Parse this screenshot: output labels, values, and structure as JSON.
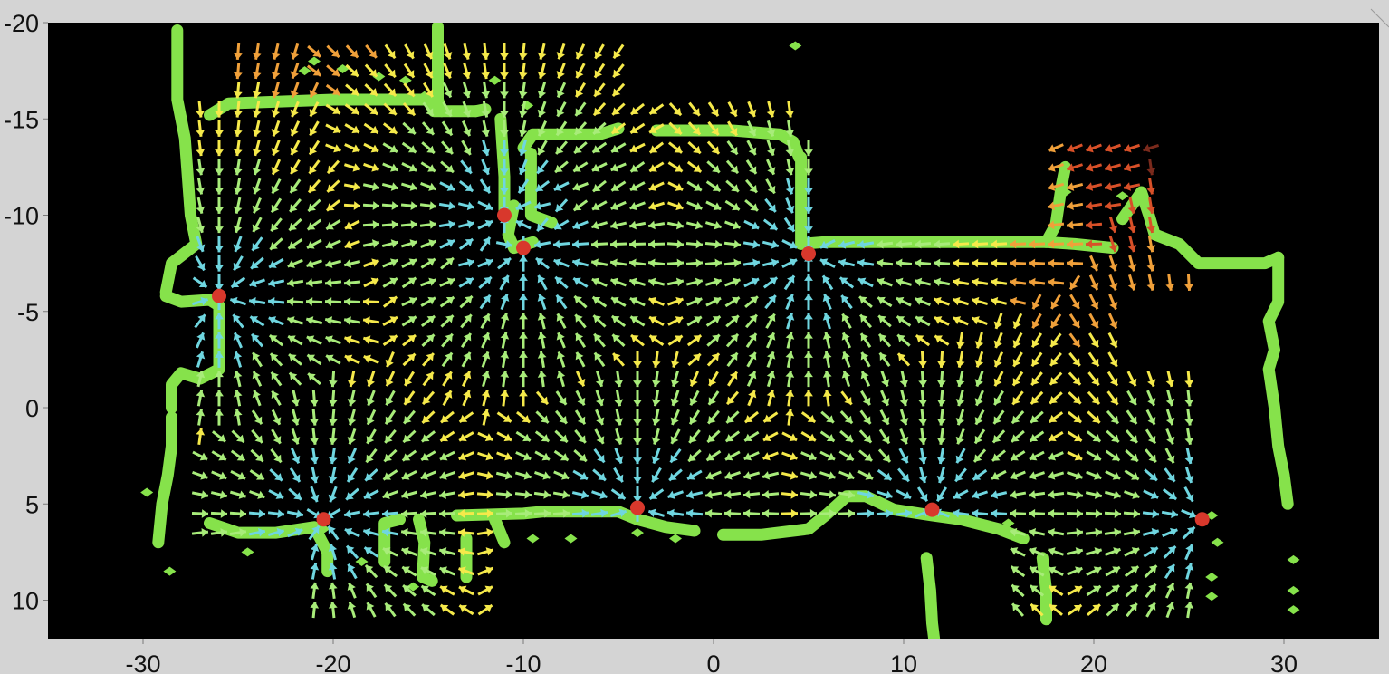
{
  "chart_data": {
    "type": "scatter",
    "subtype": "quiver-field-with-occupancy-map",
    "title": "",
    "xlabel": "",
    "ylabel": "",
    "xlim": [
      -35,
      35
    ],
    "ylim": [
      12,
      -20
    ],
    "y_axis_direction": "reversed (downward increasing)",
    "x_ticks": [
      -30,
      -20,
      -10,
      0,
      10,
      20,
      30
    ],
    "x_tick_labels": [
      "-30",
      "-20",
      "-10",
      "0",
      "10",
      "20",
      "30"
    ],
    "y_ticks": [
      -20,
      -15,
      -10,
      -5,
      0,
      5,
      10
    ],
    "y_tick_labels": [
      "-20",
      "-15",
      "-10",
      "-5",
      "0",
      "5",
      "10"
    ],
    "grid": false,
    "legend": "none",
    "colors": {
      "plot_background": "#000000",
      "outer_background": "#d4d4d4",
      "obstacles": "#86e24b",
      "goal_markers": "#d8382c",
      "arrow_colormap": [
        "#6fd6e0",
        "#a8ec7a",
        "#f5e94a",
        "#f0a03a",
        "#d85028",
        "#7a2a1c"
      ]
    },
    "red_markers": [
      {
        "x": -26,
        "y": -5.8
      },
      {
        "x": -11,
        "y": -10
      },
      {
        "x": -10,
        "y": -8.3
      },
      {
        "x": 5,
        "y": -8
      },
      {
        "x": -20.5,
        "y": 5.8
      },
      {
        "x": -4,
        "y": 5.2
      },
      {
        "x": 11.5,
        "y": 5.3
      },
      {
        "x": 25.7,
        "y": 5.8
      }
    ],
    "obstacle_polylines": [
      [
        [
          -28.2,
          -19.6
        ],
        [
          -28.2,
          -16
        ],
        [
          -27.8,
          -14
        ],
        [
          -27.5,
          -10
        ],
        [
          -27.2,
          -8.5
        ],
        [
          -28.5,
          -7.5
        ],
        [
          -28.8,
          -6
        ]
      ],
      [
        [
          -28.8,
          -5.8
        ],
        [
          -28,
          -5.5
        ],
        [
          -26.5,
          -5.6
        ],
        [
          -26,
          -5.3
        ],
        [
          -26,
          -4
        ],
        [
          -26,
          -2
        ],
        [
          -27,
          -1.5
        ],
        [
          -28,
          -1.8
        ],
        [
          -28.5,
          -1.2
        ],
        [
          -28.5,
          0
        ]
      ],
      [
        [
          -28.5,
          0.5
        ],
        [
          -28.5,
          2
        ],
        [
          -28.7,
          3.5
        ],
        [
          -29,
          5
        ],
        [
          -29.2,
          7
        ]
      ],
      [
        [
          -26.5,
          -15.2
        ],
        [
          -25.5,
          -15.8
        ],
        [
          -20,
          -16
        ],
        [
          -15,
          -16
        ],
        [
          -14.7,
          -15.4
        ],
        [
          -12.5,
          -15.4
        ]
      ],
      [
        [
          -14.5,
          -19.8
        ],
        [
          -14.5,
          -16
        ],
        [
          -14.3,
          -15.4
        ]
      ],
      [
        [
          -12.5,
          -15.4
        ],
        [
          -12,
          -15.5
        ]
      ],
      [
        [
          -11.2,
          -15
        ],
        [
          -11,
          -12
        ],
        [
          -11,
          -10
        ]
      ],
      [
        [
          -10.5,
          -10.5
        ],
        [
          -10.8,
          -9
        ],
        [
          -10.5,
          -8.3
        ],
        [
          -9.5,
          -8.6
        ]
      ],
      [
        [
          -10,
          -13.5
        ],
        [
          -9.5,
          -14.2
        ],
        [
          -6,
          -14.2
        ],
        [
          -5,
          -14.5
        ]
      ],
      [
        [
          -9.6,
          -13.2
        ],
        [
          -9.6,
          -10
        ],
        [
          -8.5,
          -9.6
        ]
      ],
      [
        [
          -3,
          -14.4
        ],
        [
          1,
          -14.4
        ],
        [
          3.5,
          -14.2
        ],
        [
          4.2,
          -13.8
        ],
        [
          4.5,
          -13
        ]
      ],
      [
        [
          4.6,
          -13
        ],
        [
          4.6,
          -11
        ],
        [
          4.6,
          -8.5
        ],
        [
          5.8,
          -8.6
        ],
        [
          12,
          -8.6
        ],
        [
          17.5,
          -8.6
        ],
        [
          18,
          -9.5
        ],
        [
          18.3,
          -11.5
        ],
        [
          18.5,
          -12.5
        ]
      ],
      [
        [
          17.5,
          -8.6
        ],
        [
          19,
          -8.5
        ],
        [
          21,
          -8.3
        ]
      ],
      [
        [
          21.5,
          -9.8
        ],
        [
          22.5,
          -11.2
        ],
        [
          22.9,
          -10
        ],
        [
          23.2,
          -9
        ],
        [
          24.5,
          -8.5
        ],
        [
          25.5,
          -7.5
        ],
        [
          29,
          -7.5
        ],
        [
          29.7,
          -7.8
        ]
      ],
      [
        [
          29.7,
          -7.8
        ],
        [
          29.7,
          -5.5
        ],
        [
          29.2,
          -4.5
        ],
        [
          29.5,
          -3
        ],
        [
          29.2,
          -2
        ],
        [
          29.5,
          0
        ],
        [
          29.7,
          2
        ],
        [
          30,
          3.5
        ],
        [
          30.2,
          5
        ]
      ],
      [
        [
          -26.5,
          6
        ],
        [
          -25,
          6.5
        ],
        [
          -23,
          6.5
        ],
        [
          -21,
          6.2
        ],
        [
          -20.3,
          7.5
        ],
        [
          -20.3,
          8.5
        ]
      ],
      [
        [
          -15.5,
          5.8
        ],
        [
          -15.2,
          7
        ],
        [
          -15.3,
          8.8
        ],
        [
          -14.8,
          9
        ]
      ],
      [
        [
          -13.5,
          5.6
        ],
        [
          -10,
          5.5
        ],
        [
          -9,
          5.4
        ],
        [
          -5,
          5.4
        ],
        [
          -4,
          5.8
        ],
        [
          -2.5,
          6.2
        ],
        [
          -1,
          6.4
        ]
      ],
      [
        [
          0.5,
          6.6
        ],
        [
          2.5,
          6.6
        ],
        [
          5,
          6.3
        ],
        [
          6,
          5.5
        ],
        [
          7,
          4.6
        ],
        [
          8,
          4.6
        ],
        [
          9.5,
          5.3
        ],
        [
          11.5,
          5.6
        ],
        [
          13,
          5.8
        ],
        [
          15,
          6.3
        ],
        [
          16.3,
          6.8
        ]
      ],
      [
        [
          11.2,
          7.8
        ],
        [
          11.4,
          9.5
        ],
        [
          11.5,
          11.2
        ],
        [
          11.6,
          12
        ]
      ],
      [
        [
          17.3,
          7.8
        ],
        [
          17.5,
          9.5
        ],
        [
          17.5,
          11
        ]
      ],
      [
        [
          -16.5,
          5.8
        ],
        [
          -17.3,
          6
        ],
        [
          -17.3,
          8
        ]
      ],
      [
        [
          -13,
          6.8
        ],
        [
          -13,
          8.8
        ]
      ],
      [
        [
          -11.5,
          5.8
        ],
        [
          -11,
          7
        ]
      ]
    ],
    "obstacle_specks": [
      [
        -17.6,
        -17.2
      ],
      [
        -16.2,
        -17
      ],
      [
        -15.2,
        -16.2
      ],
      [
        -11.5,
        -17
      ],
      [
        -9.8,
        -15.7
      ],
      [
        4.3,
        -18.8
      ],
      [
        -29.8,
        4.4
      ],
      [
        -28.6,
        8.5
      ],
      [
        -24.5,
        7.5
      ],
      [
        -20.5,
        6.3
      ],
      [
        -18.5,
        8
      ],
      [
        -15.8,
        9.3
      ],
      [
        -9.5,
        6.8
      ],
      [
        -7.5,
        6.8
      ],
      [
        -4,
        6.5
      ],
      [
        -2,
        6.8
      ],
      [
        15.5,
        6
      ],
      [
        21.5,
        -11
      ],
      [
        18.5,
        -11.2
      ],
      [
        26.2,
        5.6
      ],
      [
        26.5,
        7
      ],
      [
        26.2,
        8.8
      ],
      [
        26.2,
        9.8
      ],
      [
        30.5,
        7.9
      ],
      [
        30.5,
        9.5
      ],
      [
        30.5,
        10.5
      ],
      [
        -21,
        -18
      ],
      [
        -21.5,
        -17.5
      ],
      [
        -19.5,
        -17.6
      ]
    ]
  }
}
